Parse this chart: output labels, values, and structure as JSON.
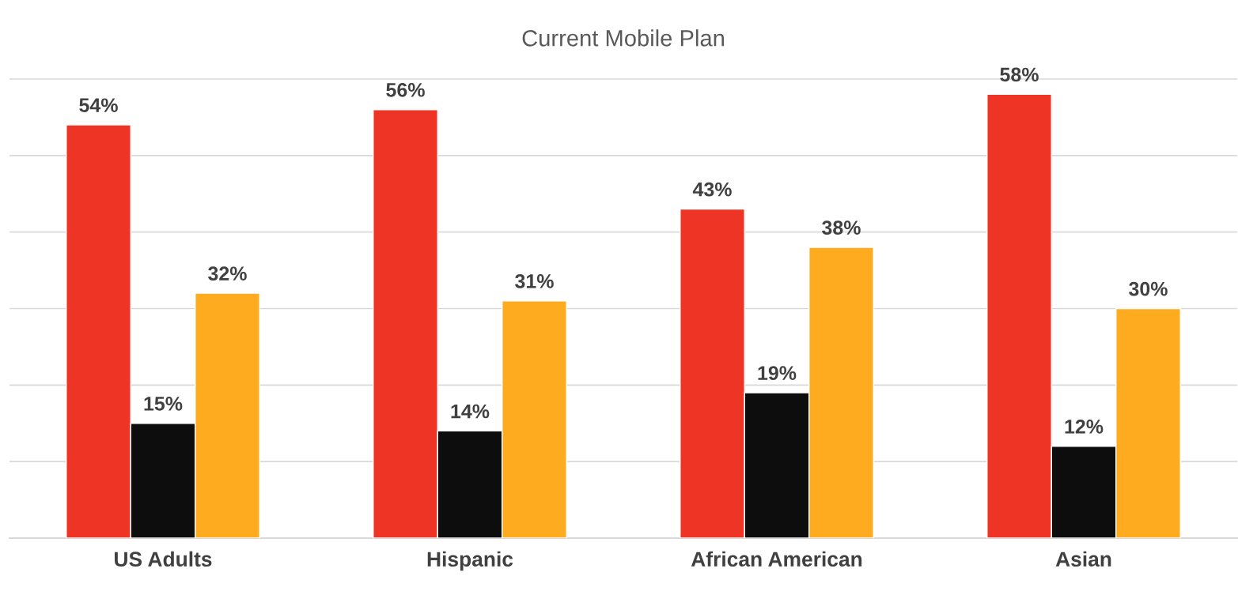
{
  "chart_data": {
    "type": "bar",
    "title": "Current Mobile Plan",
    "categories": [
      "US Adults",
      "Hispanic",
      "African American",
      "Asian"
    ],
    "series": [
      {
        "color": "#ee3424",
        "values": [
          54,
          56,
          43,
          58
        ],
        "value_labels": [
          "54%",
          "56%",
          "43%",
          "58%"
        ]
      },
      {
        "color": "#0d0d0d",
        "values": [
          15,
          14,
          19,
          12
        ],
        "value_labels": [
          "15%",
          "14%",
          "19%",
          "12%"
        ]
      },
      {
        "color": "#ffab1f",
        "values": [
          32,
          31,
          38,
          30
        ],
        "value_labels": [
          "32%",
          "31%",
          "38%",
          "30%"
        ]
      }
    ],
    "tick_labels": "x",
    "grid": "y",
    "legend": false
  }
}
